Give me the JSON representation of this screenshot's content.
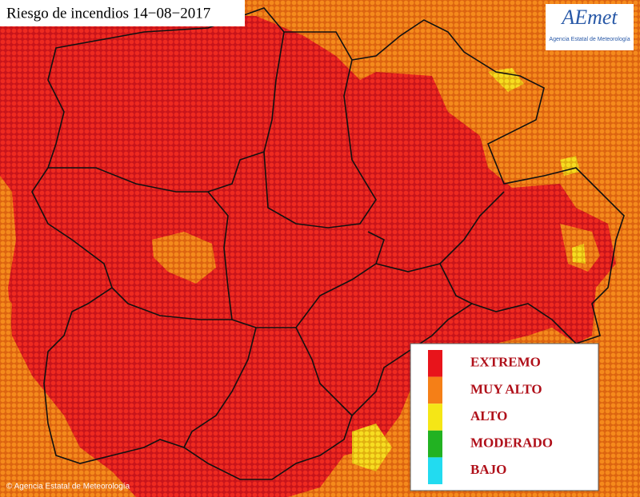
{
  "title": "Riesgo de incendios 14−08−2017",
  "logo": {
    "name": "AEmet",
    "subtitle": "Agencia Estatal de Meteorología"
  },
  "legend": {
    "items": [
      {
        "label": "EXTREMO",
        "color": "#e8141b"
      },
      {
        "label": "MUY ALTO",
        "color": "#f57f17"
      },
      {
        "label": "ALTO",
        "color": "#f5e616"
      },
      {
        "label": "MODERADO",
        "color": "#22b222"
      },
      {
        "label": "BAJO",
        "color": "#22dbf0"
      }
    ]
  },
  "copyright": "© Agencia Estatal de Meteorología"
}
